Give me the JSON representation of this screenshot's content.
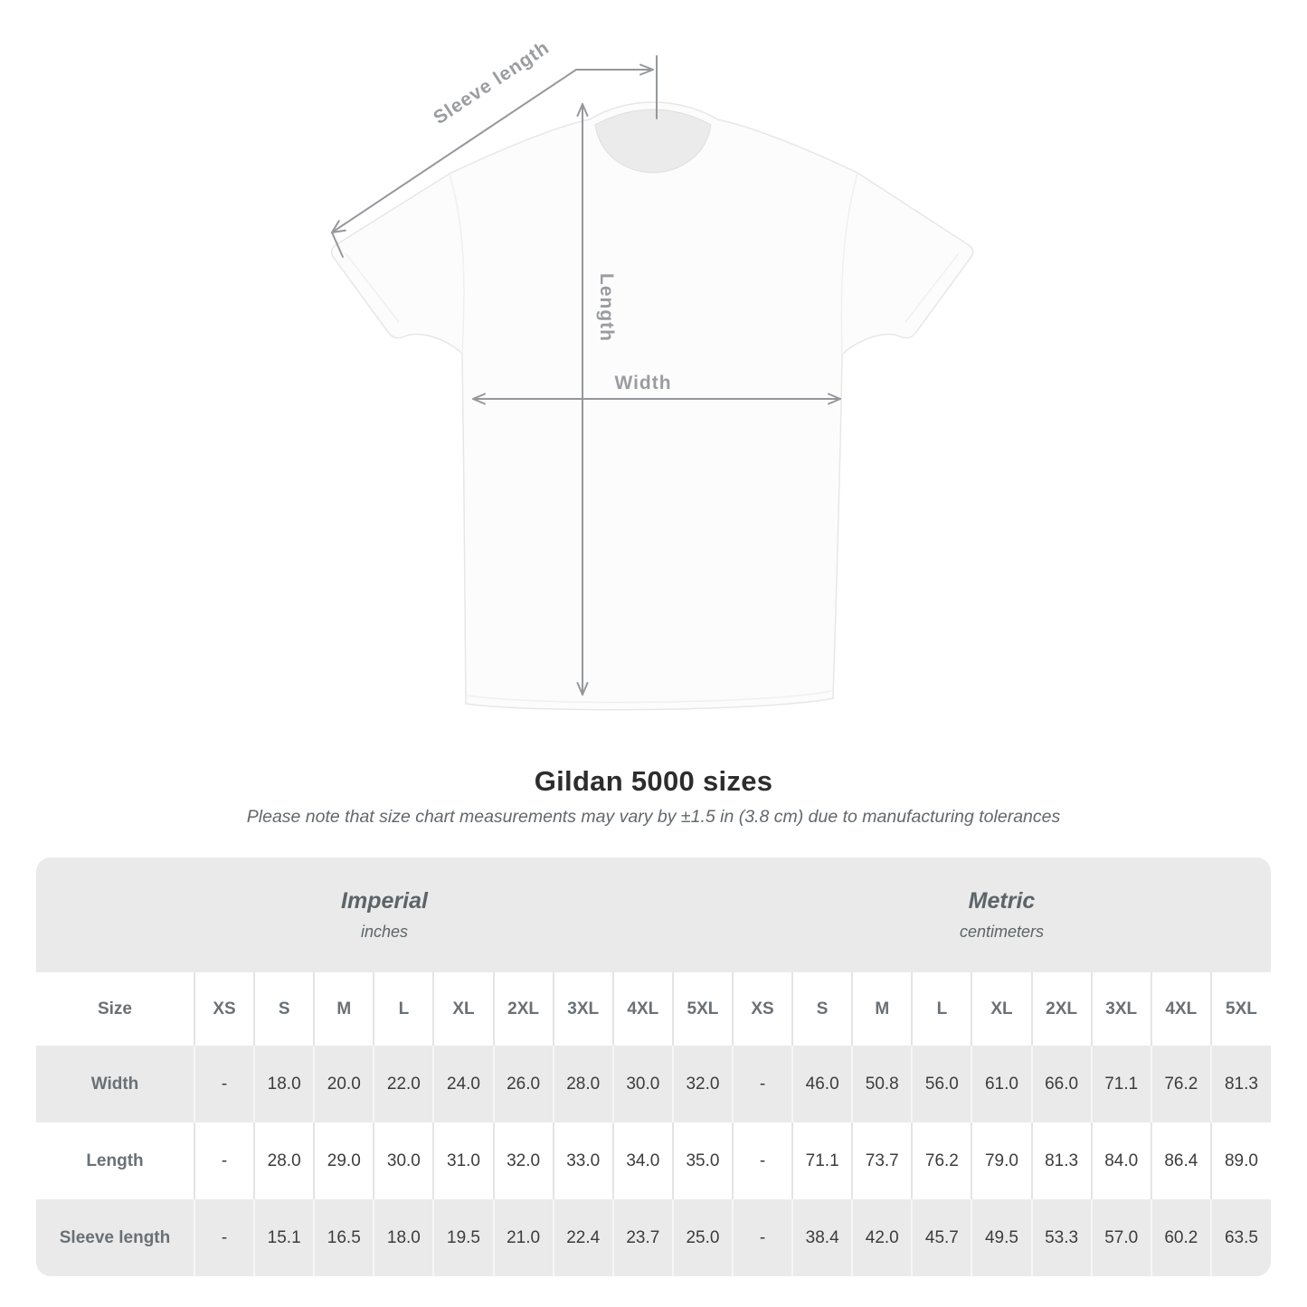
{
  "diagram": {
    "labels": {
      "sleeve_length": "Sleeve length",
      "length": "Length",
      "width": "Width"
    }
  },
  "title": "Gildan 5000 sizes",
  "subtitle": "Please note that size chart measurements may vary by ±1.5 in (3.8 cm) due to manufacturing tolerances",
  "table": {
    "groups": [
      {
        "label": "Imperial",
        "sublabel": "inches"
      },
      {
        "label": "Metric",
        "sublabel": "centimeters"
      }
    ],
    "size_header": "Size",
    "sizes": [
      "XS",
      "S",
      "M",
      "L",
      "XL",
      "2XL",
      "3XL",
      "4XL",
      "5XL"
    ],
    "rows": [
      {
        "label": "Width",
        "imperial": [
          "-",
          "18.0",
          "20.0",
          "22.0",
          "24.0",
          "26.0",
          "28.0",
          "30.0",
          "32.0"
        ],
        "metric": [
          "-",
          "46.0",
          "50.8",
          "56.0",
          "61.0",
          "66.0",
          "71.1",
          "76.2",
          "81.3"
        ]
      },
      {
        "label": "Length",
        "imperial": [
          "-",
          "28.0",
          "29.0",
          "30.0",
          "31.0",
          "32.0",
          "33.0",
          "34.0",
          "35.0"
        ],
        "metric": [
          "-",
          "71.1",
          "73.7",
          "76.2",
          "79.0",
          "81.3",
          "84.0",
          "86.4",
          "89.0"
        ]
      },
      {
        "label": "Sleeve length",
        "imperial": [
          "-",
          "15.1",
          "16.5",
          "18.0",
          "19.5",
          "21.0",
          "22.4",
          "23.7",
          "25.0"
        ],
        "metric": [
          "-",
          "38.4",
          "42.0",
          "45.7",
          "49.5",
          "53.3",
          "57.0",
          "60.2",
          "63.5"
        ]
      }
    ]
  },
  "colors": {
    "band_gray": "#eaeaea",
    "divider_on_white": "#e4e4e4",
    "divider_on_gray": "#f6f6f6",
    "header_text": "#6a7075",
    "data_text": "#3c3c3c",
    "annotation": "#95979b",
    "title_text": "#2d2d2d"
  }
}
